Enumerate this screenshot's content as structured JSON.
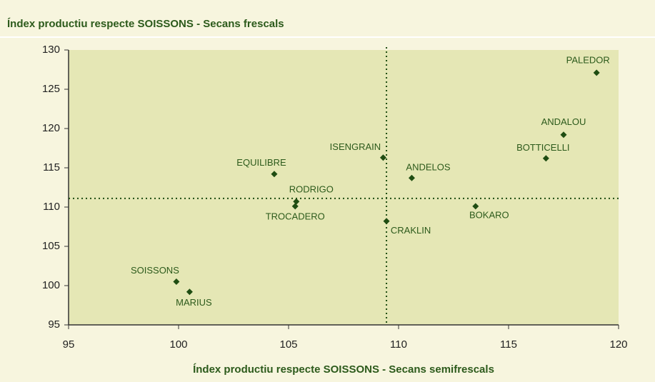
{
  "chart_data": {
    "type": "scatter",
    "title": "Índex productiu respecte SOISSONS - Secans frescals",
    "x_label": "Índex productiu respecte SOISSONS - Secans semifrescals",
    "point_labels": [
      "PALEDOR",
      "ANDALOU",
      "BOTTICELLI",
      "ANDELOS",
      "ISENGRAIN",
      "EQUILIBRE",
      "RODRIGO",
      "TROCADERO",
      "CRAKLIN",
      "BOKARO",
      "SOISSONS",
      "MARIUS"
    ],
    "x": [
      119.0,
      117.5,
      116.7,
      110.6,
      109.3,
      104.35,
      105.35,
      105.3,
      109.45,
      113.5,
      99.9,
      100.5
    ],
    "values": [
      127.1,
      119.2,
      116.2,
      113.7,
      116.3,
      114.2,
      110.7,
      110.1,
      108.2,
      110.1,
      100.5,
      99.2
    ],
    "color": "#1f4d12",
    "reference_lines": {
      "x": 109.45,
      "y": 111.1
    },
    "xlim": [
      95,
      120
    ],
    "xticks": [
      95,
      100,
      105,
      110,
      115,
      120
    ],
    "ylim": [
      95,
      130
    ],
    "yticks": [
      95,
      100,
      105,
      110,
      115,
      120,
      125,
      130
    ]
  }
}
